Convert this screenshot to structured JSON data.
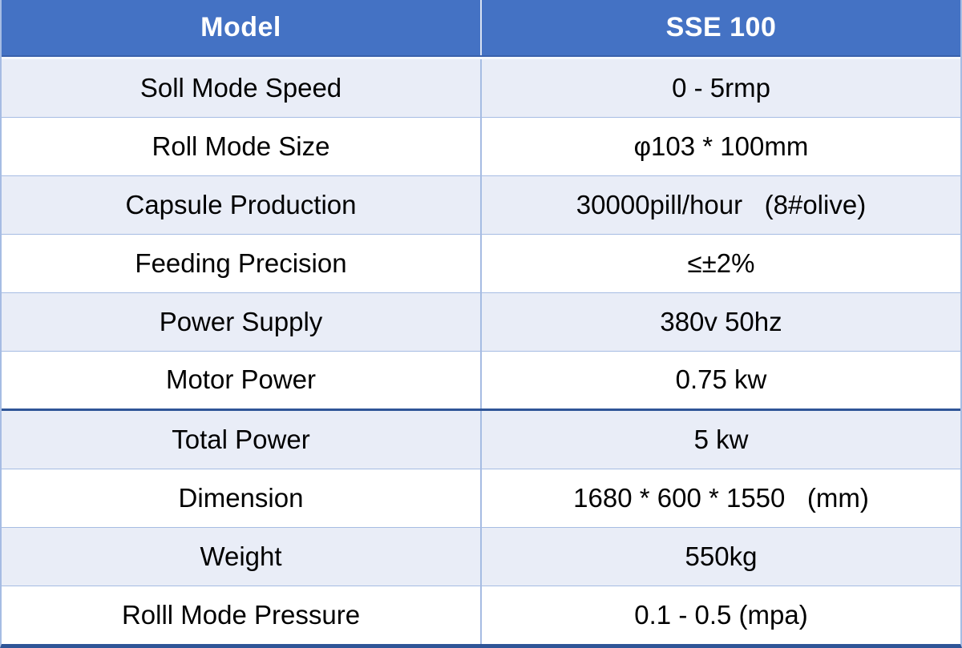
{
  "colors": {
    "header_bg": "#4472C4",
    "header_text": "#FFFFFF",
    "row_light": "#E9EDF7",
    "row_white": "#FFFFFF",
    "border_light": "#A6BCE3",
    "border_dark": "#2F5597",
    "header_divider": "#D9E2F3",
    "text": "#000000"
  },
  "table": {
    "header": {
      "model_label": "Model",
      "model_value": "SSE 100"
    },
    "rows": [
      {
        "label": "Soll Mode Speed",
        "value": "0 - 5rmp"
      },
      {
        "label": "Roll Mode Size",
        "value": "φ103 * 100mm"
      },
      {
        "label": "Capsule Production",
        "value": "30000pill/hour   (8#olive)"
      },
      {
        "label": "Feeding Precision",
        "value": "≤±2%"
      },
      {
        "label": "Power Supply",
        "value": "380v 50hz"
      },
      {
        "label": "Motor Power",
        "value": "0.75 kw"
      },
      {
        "label": "Total Power",
        "value": "5 kw"
      },
      {
        "label": "Dimension",
        "value": "1680 * 600 * 1550   (mm)"
      },
      {
        "label": "Weight",
        "value": "550kg"
      },
      {
        "label": "Rolll Mode Pressure",
        "value": "0.1 - 0.5 (mpa)"
      }
    ]
  }
}
